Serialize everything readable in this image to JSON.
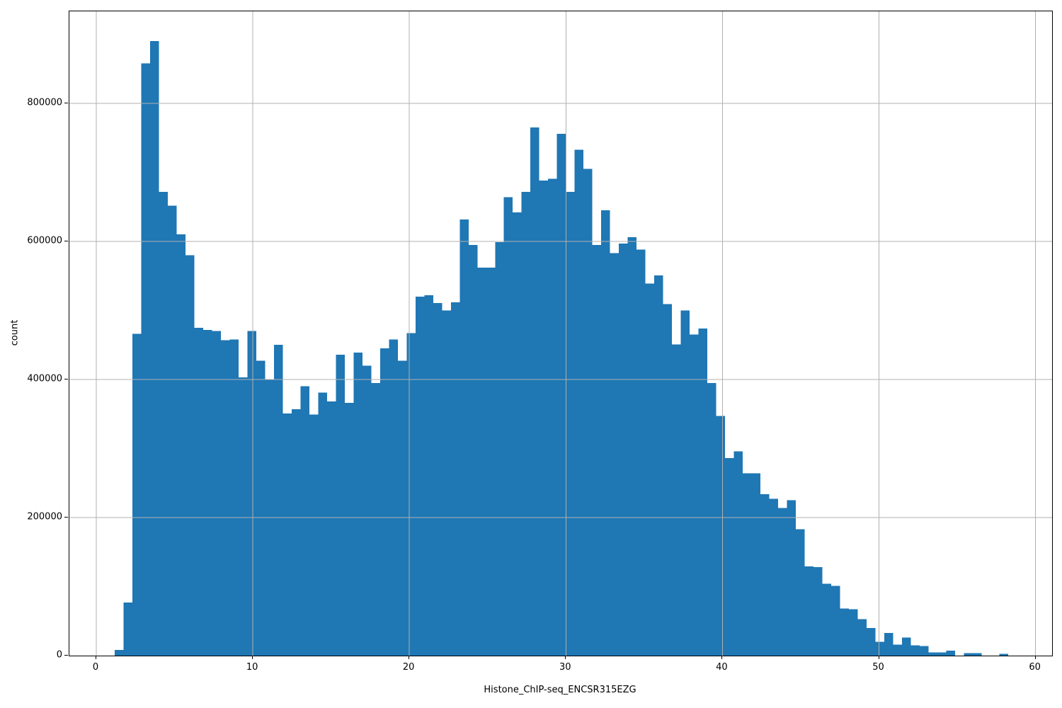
{
  "figure": {
    "background_color": "#ffffff",
    "spine_color": "#000000"
  },
  "chart_data": {
    "type": "bar",
    "subtype": "histogram",
    "title": "",
    "xlabel": "Histone_ChIP-seq_ENCSR315EZG",
    "ylabel": "count",
    "bar_color": "#1f77b4",
    "grid_color": "#b0b0b0",
    "grid": true,
    "grid_above_bars": true,
    "legend": "none",
    "xlim": [
      -1.72,
      61.06
    ],
    "ylim": [
      0,
      933300
    ],
    "x_ticks": [
      0,
      10,
      20,
      30,
      40,
      50,
      60
    ],
    "y_ticks": [
      0,
      200000,
      400000,
      600000,
      800000
    ],
    "bin_start": 1.18,
    "bin_width": 0.565,
    "counts": [
      8000,
      77000,
      466000,
      858000,
      890000,
      672000,
      652000,
      610000,
      580000,
      475000,
      472000,
      470000,
      457000,
      458000,
      403000,
      470000,
      427000,
      400000,
      450000,
      351000,
      357000,
      390000,
      349000,
      381000,
      368000,
      436000,
      366000,
      439000,
      420000,
      395000,
      445000,
      458000,
      427000,
      467000,
      520000,
      522000,
      511000,
      500000,
      512000,
      632000,
      595000,
      562000,
      562000,
      599000,
      664000,
      642000,
      672000,
      765000,
      688000,
      691000,
      756000,
      672000,
      733000,
      705000,
      595000,
      645000,
      583000,
      597000,
      606000,
      588000,
      539000,
      551000,
      509000,
      451000,
      500000,
      465000,
      474000,
      395000,
      347000,
      286000,
      296000,
      264000,
      264000,
      234000,
      227000,
      214000,
      225000,
      183000,
      129000,
      128000,
      104000,
      101000,
      68000,
      67000,
      53000,
      40000,
      20000,
      33000,
      16000,
      26000,
      15000,
      14000,
      4400,
      4400,
      7000,
      0,
      3400,
      3400,
      0,
      0,
      2400
    ]
  }
}
